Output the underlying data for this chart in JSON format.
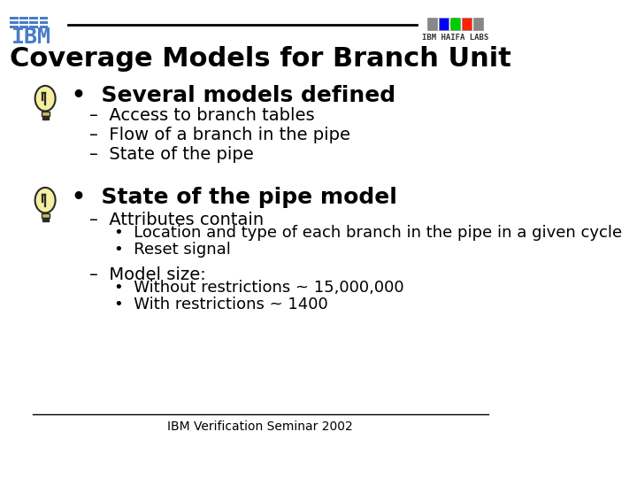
{
  "title": "Coverage Models for Branch Unit",
  "title_fontsize": 22,
  "title_fontweight": "bold",
  "bg_color": "#ffffff",
  "text_color": "#000000",
  "header_line_color": "#000000",
  "footer_line_color": "#000000",
  "footer_text": "IBM Verification Seminar 2002",
  "footer_fontsize": 10,
  "bullet1_text": "Several models defined",
  "bullet1_fontsize": 18,
  "sub1": [
    "Access to branch tables",
    "Flow of a branch in the pipe",
    "State of the pipe"
  ],
  "sub1_fontsize": 14,
  "bullet2_text": "State of the pipe model",
  "bullet2_fontsize": 18,
  "sub2_attr": "Attributes contain",
  "sub2_attr_fontsize": 14,
  "sub2_attr_bullets": [
    "Location and type of each branch in the pipe in a given cycle",
    "Reset signal"
  ],
  "sub2_attr_bullets_fontsize": 13,
  "sub2_model": "Model size:",
  "sub2_model_fontsize": 14,
  "sub2_model_bullets": [
    "Without restrictions ~ 15,000,000",
    "With restrictions ~ 1400"
  ],
  "sub2_model_bullets_fontsize": 13,
  "bulb_color_light": "#f5f0a0",
  "bulb_color_dark": "#2a2a2a",
  "ibm_blue": "#4a7cc7",
  "ibm_logo_colors": [
    "#4a7cc7",
    "#4a7cc7",
    "#4a7cc7"
  ],
  "haifa_logo_colors": [
    "#888888",
    "#0000ff",
    "#00cc00",
    "#ff2200",
    "#888888"
  ]
}
